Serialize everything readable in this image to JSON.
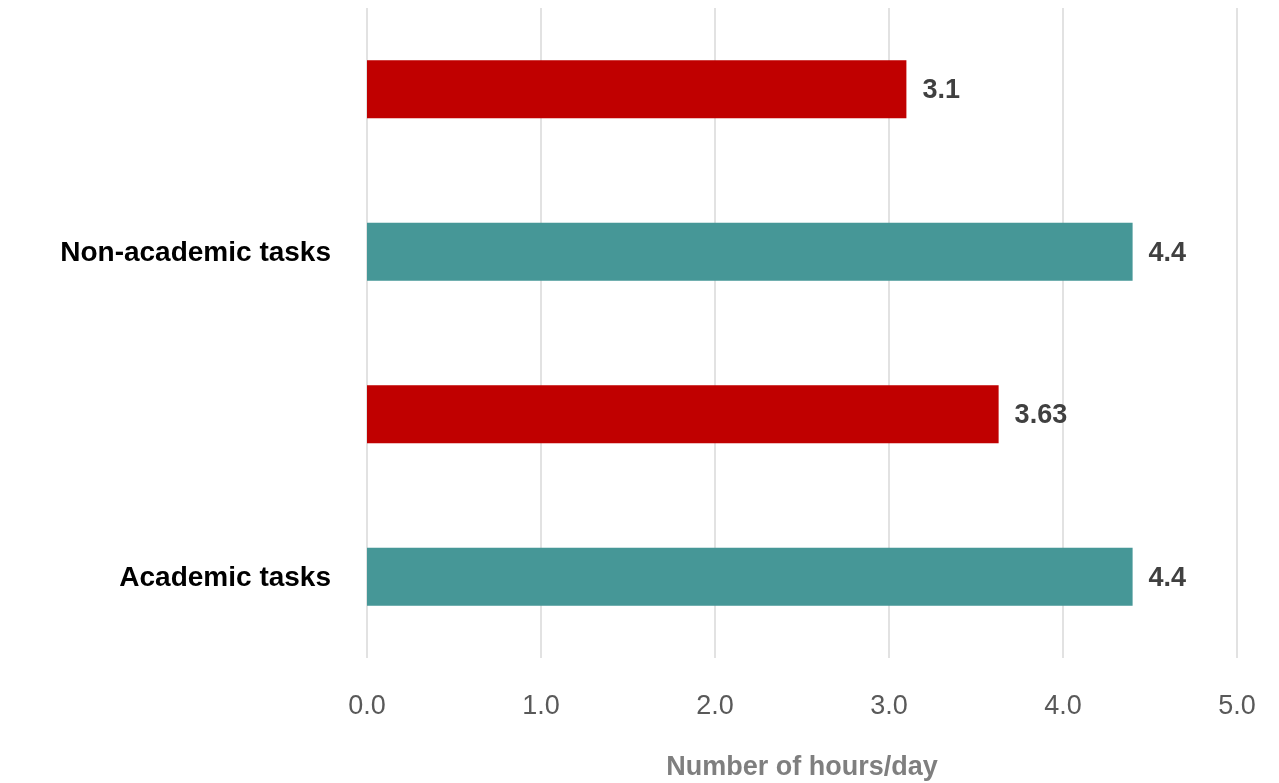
{
  "chart_data": {
    "type": "bar",
    "orientation": "horizontal",
    "xlabel": "Number of hours/day",
    "categories": [
      null,
      "Non-academic tasks",
      null,
      "Academic tasks"
    ],
    "values": [
      3.1,
      4.4,
      3.63,
      4.4
    ],
    "colors": [
      "#c00000",
      "#469797",
      "#c00000",
      "#469797"
    ],
    "xlim": [
      0,
      5
    ],
    "xticks": [
      {
        "value": 0,
        "label": "0.0"
      },
      {
        "value": 1,
        "label": "1.0"
      },
      {
        "value": 2,
        "label": "2.0"
      },
      {
        "value": 3,
        "label": "3.0"
      },
      {
        "value": 4,
        "label": "4.0"
      },
      {
        "value": 5,
        "label": "5.0"
      }
    ],
    "grid": "x",
    "data_labels": true
  }
}
